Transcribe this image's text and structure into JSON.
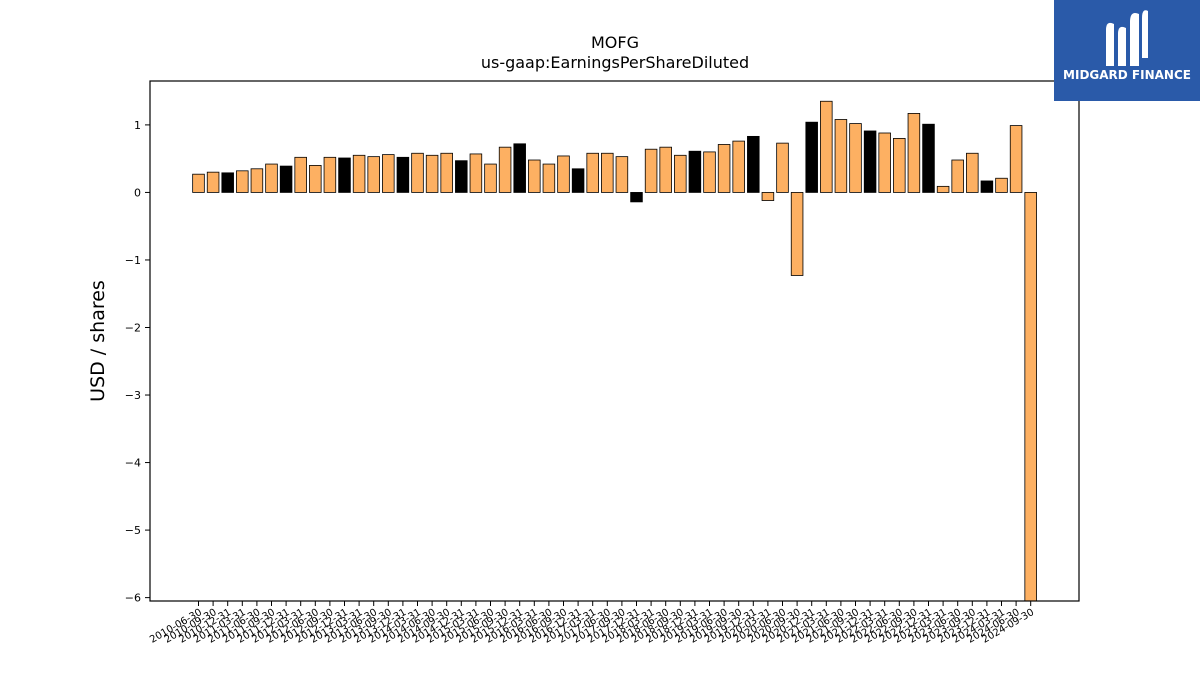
{
  "logo": {
    "name": "MIDGARD FINANCE",
    "icon": "midgard-m-logo-icon",
    "background": "#2a5aa9"
  },
  "chart_data": {
    "type": "bar",
    "title": "MOFG",
    "subtitle": "us-gaap:EarningsPerShareDiluted",
    "xlabel": "",
    "ylabel": "USD / shares",
    "ylim": [
      -6.05,
      1.65
    ],
    "yticks": [
      1,
      0,
      -1,
      -2,
      -3,
      -4,
      -5,
      -6
    ],
    "ytick_labels": [
      "1",
      "0",
      "−1",
      "−2",
      "−3",
      "−4",
      "−5",
      "−6"
    ],
    "grid": false,
    "colors": {
      "default": "#fdb062",
      "highlight": "#000000",
      "edge": "#000000"
    },
    "categories": [
      "2010-06-30",
      "2010-09-30",
      "2010-12-31",
      "2011-03-31",
      "2011-06-30",
      "2011-09-30",
      "2011-12-31",
      "2012-03-31",
      "2012-06-30",
      "2012-09-30",
      "2012-12-31",
      "2013-03-31",
      "2013-06-30",
      "2013-09-30",
      "2013-12-31",
      "2014-03-31",
      "2014-06-30",
      "2014-09-30",
      "2014-12-31",
      "2015-03-31",
      "2015-06-30",
      "2015-09-30",
      "2015-12-31",
      "2016-03-31",
      "2016-06-30",
      "2016-09-30",
      "2016-12-31",
      "2017-03-31",
      "2017-06-30",
      "2017-09-30",
      "2017-12-31",
      "2018-03-31",
      "2018-06-30",
      "2018-09-30",
      "2018-12-31",
      "2019-03-31",
      "2019-06-30",
      "2019-09-30",
      "2019-12-31",
      "2020-03-31",
      "2020-06-30",
      "2020-09-30",
      "2020-12-31",
      "2021-03-31",
      "2021-06-30",
      "2021-09-30",
      "2021-12-31",
      "2022-03-31",
      "2022-06-30",
      "2022-09-30",
      "2022-12-31",
      "2023-03-31",
      "2023-06-30",
      "2023-09-30",
      "2023-12-31",
      "2024-03-31",
      "2024-06-30",
      "2024-09-30"
    ],
    "values": [
      0.27,
      0.3,
      0.29,
      0.32,
      0.35,
      0.42,
      0.39,
      0.52,
      0.4,
      0.52,
      0.51,
      0.55,
      0.53,
      0.56,
      0.52,
      0.58,
      0.55,
      0.58,
      0.47,
      0.57,
      0.42,
      0.67,
      0.72,
      0.48,
      0.42,
      0.54,
      0.35,
      0.58,
      0.58,
      0.53,
      -0.14,
      0.64,
      0.67,
      0.55,
      0.61,
      0.6,
      0.71,
      0.76,
      0.83,
      -0.12,
      0.73,
      -1.23,
      1.04,
      1.35,
      1.08,
      1.02,
      0.91,
      0.88,
      0.8,
      1.17,
      1.01,
      0.09,
      0.48,
      0.58,
      0.17,
      0.21,
      0.99,
      -6.05
    ],
    "highlight": [
      false,
      false,
      true,
      false,
      false,
      false,
      true,
      false,
      false,
      false,
      true,
      false,
      false,
      false,
      true,
      false,
      false,
      false,
      true,
      false,
      false,
      false,
      true,
      false,
      false,
      false,
      true,
      false,
      false,
      false,
      true,
      false,
      false,
      false,
      true,
      false,
      false,
      false,
      true,
      false,
      false,
      false,
      true,
      false,
      false,
      false,
      true,
      false,
      false,
      false,
      true,
      false,
      false,
      false,
      true,
      false,
      false,
      false
    ]
  }
}
